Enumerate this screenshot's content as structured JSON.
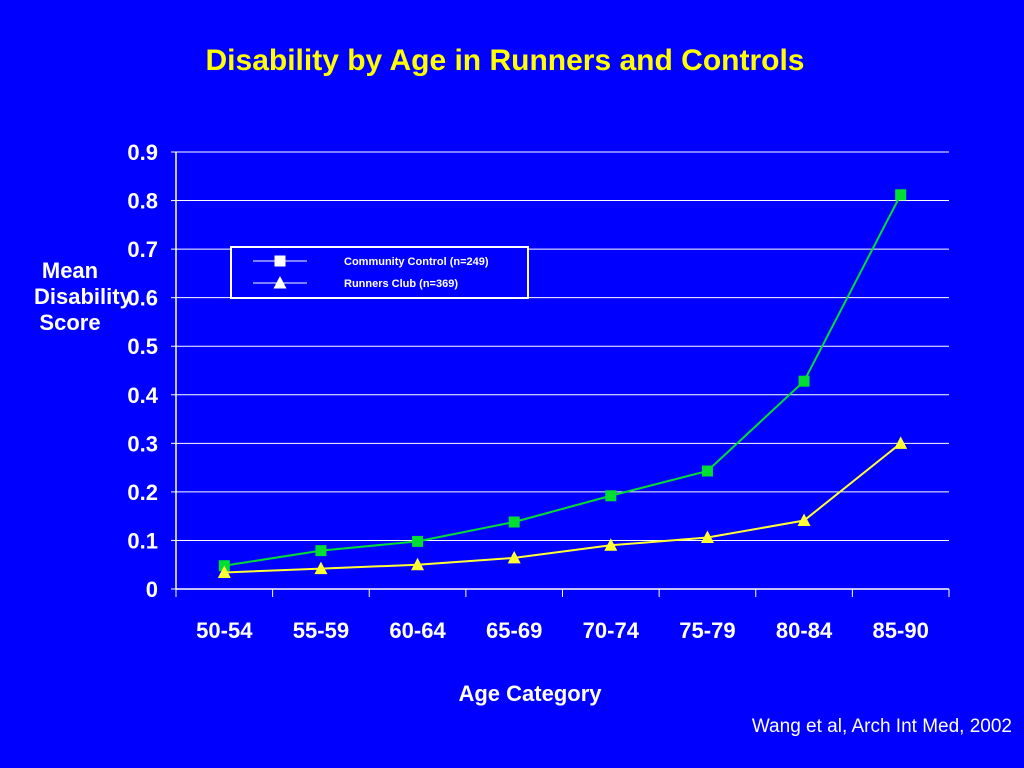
{
  "chart_data": {
    "type": "line",
    "title": "Disability by Age in Runners and Controls",
    "xlabel": "Age Category",
    "ylabel": "Mean Disability Score",
    "categories": [
      "50-54",
      "55-59",
      "60-64",
      "65-69",
      "70-74",
      "75-79",
      "80-84",
      "85-90"
    ],
    "ylim": [
      0,
      0.9
    ],
    "yticks": [
      "0",
      "0.1",
      "0.2",
      "0.3",
      "0.4",
      "0.5",
      "0.6",
      "0.7",
      "0.8",
      "0.9"
    ],
    "grid": true,
    "legend_position": "top-left",
    "series": [
      {
        "name": "Community Control (n=249)",
        "marker": "square",
        "color": "#00dd33",
        "values": [
          0.048,
          0.079,
          0.098,
          0.138,
          0.192,
          0.243,
          0.428,
          0.812
        ]
      },
      {
        "name": "Runners Club (n=369)",
        "marker": "triangle",
        "color": "#ffff33",
        "values": [
          0.034,
          0.042,
          0.05,
          0.064,
          0.09,
          0.106,
          0.141,
          0.3
        ]
      }
    ]
  },
  "source": "Wang et al, Arch Int Med, 2002"
}
